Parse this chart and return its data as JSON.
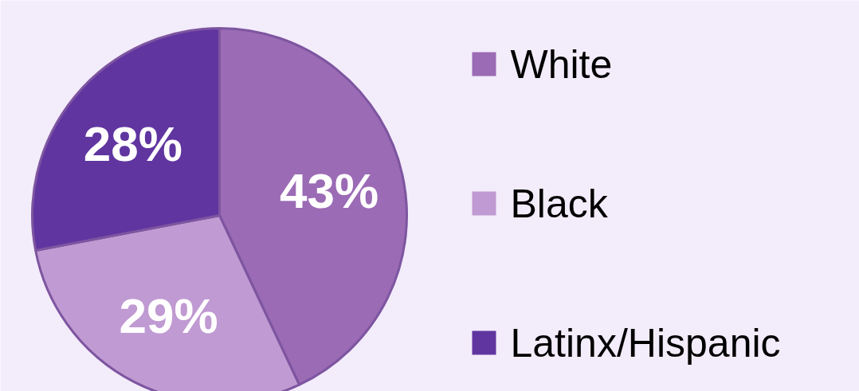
{
  "chart_data": {
    "type": "pie",
    "categories": [
      "White",
      "Black",
      "Latinx/Hispanic"
    ],
    "values": [
      43,
      29,
      28
    ],
    "colors": [
      "#9b6bb5",
      "#c09ad2",
      "#6035a0"
    ],
    "value_labels": [
      "43%",
      "29%",
      "28%"
    ],
    "legend": "right"
  }
}
